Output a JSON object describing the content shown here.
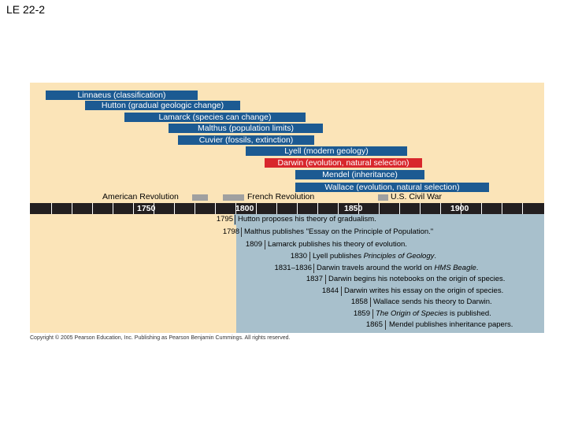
{
  "slide": {
    "title": "LE 22-2"
  },
  "figure": {
    "lifespans": [
      {
        "label": "Linnaeus (classification)",
        "highlight": false
      },
      {
        "label": "Hutton (gradual geologic change)",
        "highlight": false
      },
      {
        "label": "Lamarck (species can change)",
        "highlight": false
      },
      {
        "label": "Malthus (population limits)",
        "highlight": false
      },
      {
        "label": "Cuvier (fossils, extinction)",
        "highlight": false
      },
      {
        "label": "Lyell (modern geology)",
        "highlight": false
      },
      {
        "label": "Darwin (evolution, natural selection)",
        "highlight": true
      },
      {
        "label": "Mendel (inheritance)",
        "highlight": false
      },
      {
        "label": "Wallace (evolution, natural selection)",
        "highlight": false
      }
    ],
    "eras": [
      {
        "label": "American Revolution"
      },
      {
        "label": "French Revolution"
      },
      {
        "label": "U.S. Civil War"
      }
    ],
    "axis_years": [
      "1750",
      "1800",
      "1850",
      "1900"
    ],
    "events": [
      {
        "year": "1795",
        "text": "Hutton proposes his theory of gradualism.",
        "text_italic": "",
        "text_after": ""
      },
      {
        "year": "1798",
        "text": "Malthus publishes \"Essay on the Principle of Population.\"",
        "text_italic": "",
        "text_after": ""
      },
      {
        "year": "1809",
        "text": "Lamarck publishes his theory of evolution.",
        "text_italic": "",
        "text_after": ""
      },
      {
        "year": "1830",
        "text": "Lyell publishes ",
        "text_italic": "Principles of Geology",
        "text_after": "."
      },
      {
        "year": "1831–1836",
        "text": "Darwin travels around the world on ",
        "text_italic": "HMS Beagle",
        "text_after": "."
      },
      {
        "year": "1837",
        "text": "Darwin begins his notebooks on the origin of species.",
        "text_italic": "",
        "text_after": ""
      },
      {
        "year": "1844",
        "text": "Darwin writes his essay on the origin of species.",
        "text_italic": "",
        "text_after": ""
      },
      {
        "year": "1858",
        "text": "Wallace sends his theory to Darwin.",
        "text_italic": "",
        "text_after": ""
      },
      {
        "year": "1859",
        "text": "",
        "text_italic": "The Origin of Species",
        "text_after": " is published."
      },
      {
        "year": "1865",
        "text": "Mendel publishes inheritance papers.",
        "text_italic": "",
        "text_after": ""
      }
    ],
    "copyright": "Copyright © 2005 Pearson Education, Inc. Publishing as Pearson Benjamin Cummings. All rights reserved.",
    "colors": {
      "bar": "#1c5a92",
      "highlight": "#d8272c",
      "panel": "#fbe4b8",
      "events": "#a8c0cc",
      "axis": "#231f20",
      "era": "#a0a0a0"
    }
  }
}
